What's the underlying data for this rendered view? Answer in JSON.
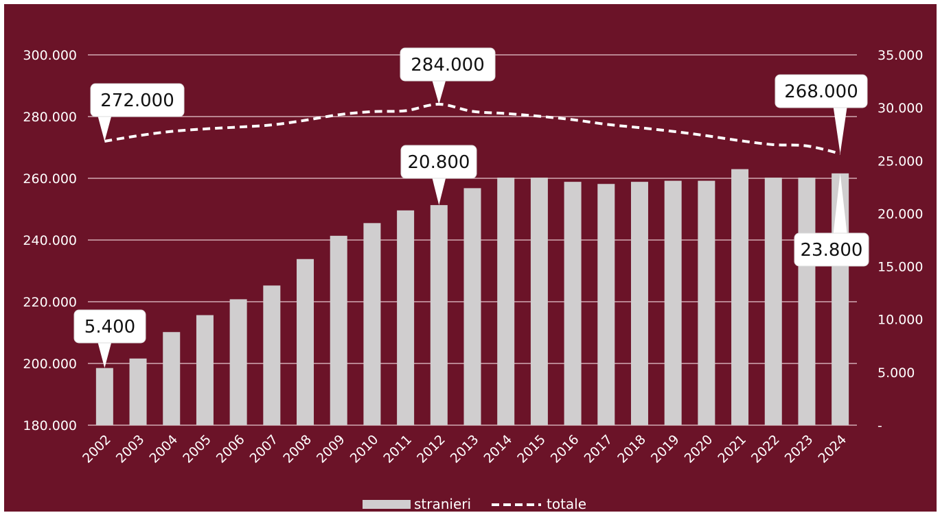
{
  "chart_data": {
    "type": "bar",
    "categories": [
      "2002",
      "2003",
      "2004",
      "2005",
      "2006",
      "2007",
      "2008",
      "2009",
      "2010",
      "2011",
      "2012",
      "2013",
      "2014",
      "2015",
      "2016",
      "2017",
      "2018",
      "2019",
      "2020",
      "2021",
      "2022",
      "2023",
      "2024"
    ],
    "series": [
      {
        "name": "stranieri",
        "type": "bar",
        "axis": "right",
        "color": "#d0cecf",
        "values": [
          5400,
          6300,
          8800,
          10400,
          11900,
          13200,
          15700,
          17900,
          19100,
          20300,
          20800,
          22400,
          23400,
          23400,
          23000,
          22800,
          23000,
          23100,
          23100,
          24200,
          23400,
          23400,
          23800
        ]
      },
      {
        "name": "totale",
        "type": "line",
        "style": "dashed",
        "axis": "left",
        "color": "#ffffff",
        "values": [
          272000,
          273800,
          275200,
          276000,
          276600,
          277300,
          278800,
          280600,
          281600,
          281900,
          284000,
          281700,
          281000,
          280100,
          279000,
          277500,
          276400,
          275200,
          273800,
          272200,
          270900,
          270500,
          268000
        ]
      }
    ],
    "y_left": {
      "min": 180000,
      "max": 300000,
      "ticks": [
        180000,
        200000,
        220000,
        240000,
        260000,
        280000,
        300000
      ],
      "tick_labels": [
        "180.000",
        "200.000",
        "220.000",
        "240.000",
        "260.000",
        "280.000",
        "300.000"
      ]
    },
    "y_right": {
      "min": 0,
      "max": 35000,
      "ticks": [
        0,
        5000,
        10000,
        15000,
        20000,
        25000,
        30000,
        35000
      ],
      "tick_labels": [
        "-",
        "5.000",
        "10.000",
        "15.000",
        "20.000",
        "25.000",
        "30.000",
        "35.000"
      ]
    },
    "annotations": [
      {
        "series": "stranieri",
        "category": "2002",
        "text": "5.400"
      },
      {
        "series": "stranieri",
        "category": "2012",
        "text": "20.800"
      },
      {
        "series": "stranieri",
        "category": "2024",
        "text": "23.800"
      },
      {
        "series": "totale",
        "category": "2002",
        "text": "272.000"
      },
      {
        "series": "totale",
        "category": "2012",
        "text": "284.000"
      },
      {
        "series": "totale",
        "category": "2024",
        "text": "268.000"
      }
    ],
    "legend": {
      "placement": "bottom",
      "entries": [
        {
          "label": "stranieri",
          "symbol": "bar"
        },
        {
          "label": "totale",
          "symbol": "dashed-line"
        }
      ]
    },
    "grid": true,
    "title": "",
    "background_color": "#6b1328"
  }
}
